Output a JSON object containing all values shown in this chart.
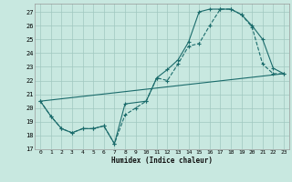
{
  "xlabel": "Humidex (Indice chaleur)",
  "bg_color": "#c8e8e0",
  "grid_color": "#a0c8c0",
  "line_color": "#1a6b6b",
  "xlim": [
    -0.5,
    23.5
  ],
  "ylim": [
    17,
    27.6
  ],
  "xticks": [
    0,
    1,
    2,
    3,
    4,
    5,
    6,
    7,
    8,
    9,
    10,
    11,
    12,
    13,
    14,
    15,
    16,
    17,
    18,
    19,
    20,
    21,
    22,
    23
  ],
  "yticks": [
    17,
    18,
    19,
    20,
    21,
    22,
    23,
    24,
    25,
    26,
    27
  ],
  "line1_x": [
    0,
    1,
    2,
    3,
    4,
    5,
    6,
    7,
    8,
    9,
    10,
    11,
    12,
    13,
    14,
    15,
    16,
    17,
    18,
    19,
    20,
    21,
    22,
    23
  ],
  "line1_y": [
    20.5,
    19.4,
    18.5,
    18.2,
    18.5,
    18.5,
    18.7,
    17.4,
    19.5,
    20.0,
    20.5,
    22.2,
    22.0,
    23.2,
    24.5,
    24.7,
    26.0,
    27.2,
    27.2,
    26.8,
    25.9,
    23.2,
    22.5,
    22.5
  ],
  "line2_x": [
    0,
    1,
    2,
    3,
    4,
    5,
    6,
    7,
    8,
    10,
    11,
    12,
    13,
    14,
    15,
    16,
    17,
    18,
    19,
    20,
    21,
    22,
    23
  ],
  "line2_y": [
    20.5,
    19.4,
    18.5,
    18.2,
    18.5,
    18.5,
    18.7,
    17.4,
    20.3,
    20.5,
    22.2,
    22.8,
    23.5,
    24.8,
    27.0,
    27.2,
    27.2,
    27.2,
    26.8,
    26.0,
    25.0,
    22.9,
    22.5
  ],
  "line3_x": [
    0,
    23
  ],
  "line3_y": [
    20.5,
    22.5
  ]
}
